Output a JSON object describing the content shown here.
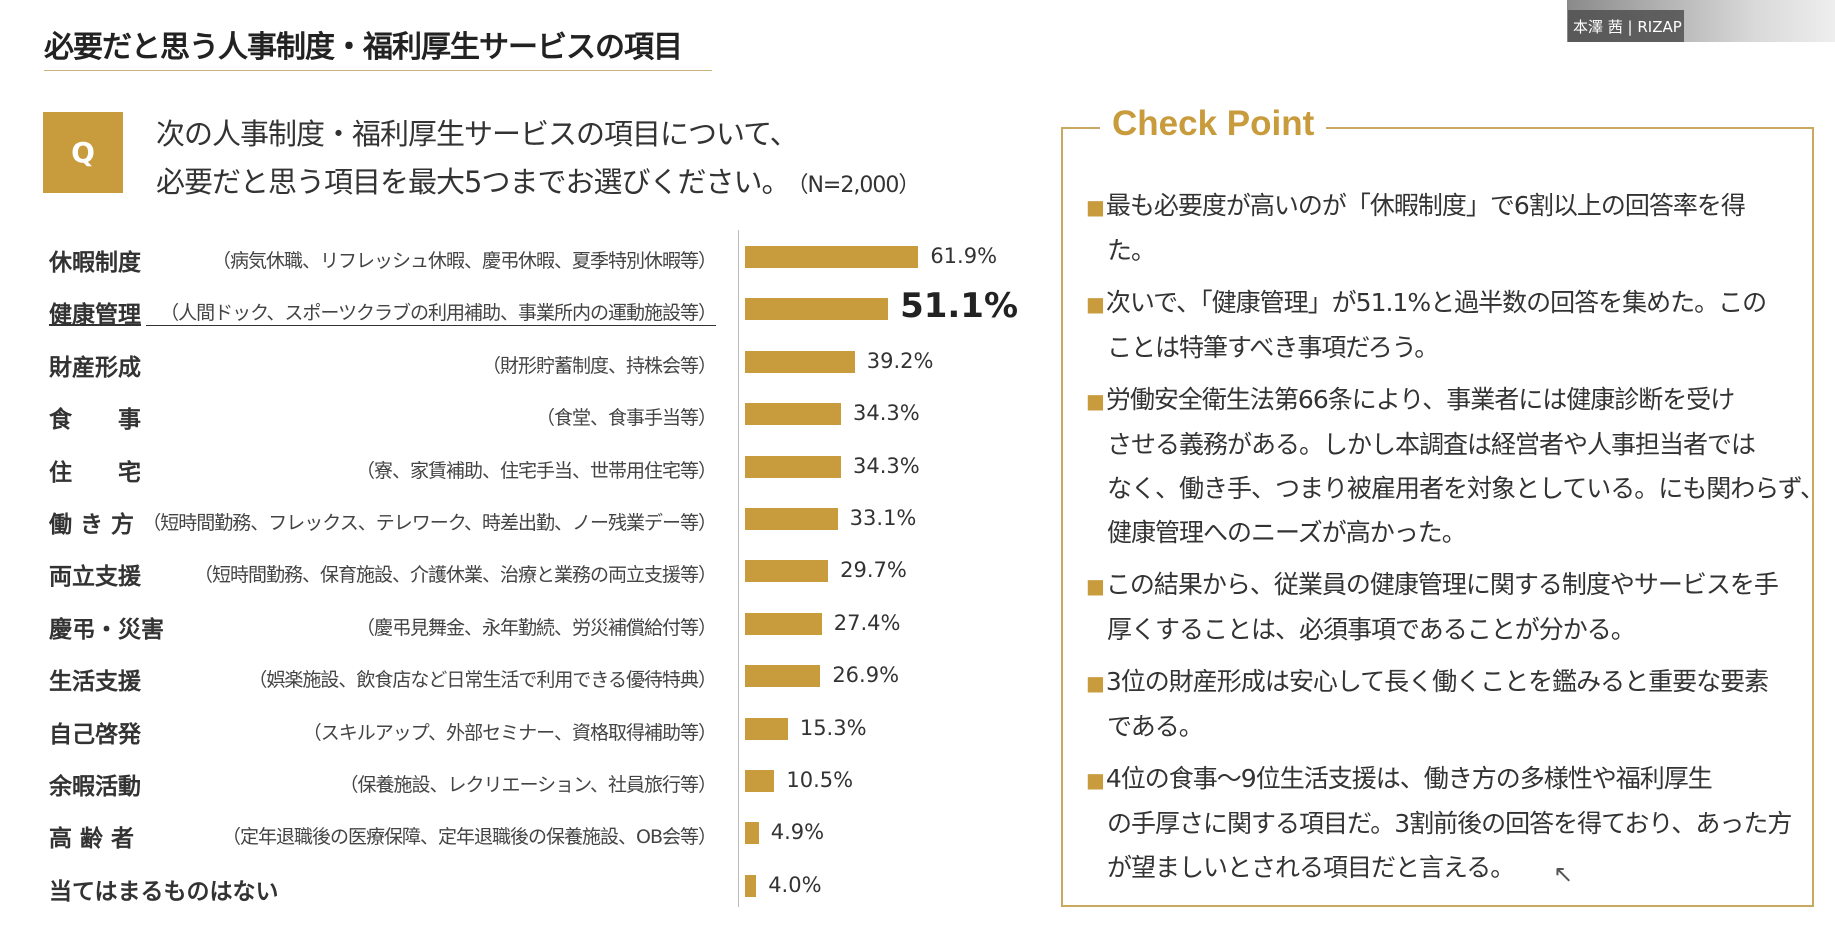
{
  "header": {
    "title": "必要だと思う人事制度・福利厚生サービスの項目"
  },
  "question": {
    "badge": "Q",
    "line1": "次の人事制度・福利厚生サービスの項目について、",
    "line2": "必要だと思う項目を最大5つまでお選びください。",
    "sample": "（N=2,000）"
  },
  "video": {
    "name_tag": "本澤 茜 | RIZAP"
  },
  "chart_data": {
    "type": "bar",
    "orientation": "horizontal",
    "highlight_index": 1,
    "categories": [
      "休暇制度",
      "健康管理",
      "財産形成",
      "食　　事",
      "住　　宅",
      "働 き 方",
      "両立支援",
      "慶弔・災害",
      "生活支援",
      "自己啓発",
      "余暇活動",
      "高 齢 者",
      "当てはまるものはない"
    ],
    "subcategories": [
      "（病気休職、リフレッシュ休暇、慶弔休暇、夏季特別休暇等）",
      "（人間ドック、スポーツクラブの利用補助、事業所内の運動施設等）",
      "（財形貯蓄制度、持株会等）",
      "（食堂、食事手当等）",
      "（寮、家賃補助、住宅手当、世帯用住宅等）",
      "（短時間勤務、フレックス、テレワーク、時差出勤、ノー残業デー等）",
      "（短時間勤務、保育施設、介護休業、治療と業務の両立支援等）",
      "（慶弔見舞金、永年勤続、労災補償給付等）",
      "（娯楽施設、飲食店など日常生活で利用できる優待特典）",
      "（スキルアップ、外部セミナー、資格取得補助等）",
      "（保養施設、レクリエーション、社員旅行等）",
      "（定年退職後の医療保障、定年退職後の保養施設、OB会等）",
      ""
    ],
    "values": [
      61.9,
      51.1,
      39.2,
      34.3,
      34.3,
      33.1,
      29.7,
      27.4,
      26.9,
      15.3,
      10.5,
      4.9,
      4.0
    ],
    "labels": [
      "61.9%",
      "51.1%",
      "39.2%",
      "34.3%",
      "34.3%",
      "33.1%",
      "29.7%",
      "27.4%",
      "26.9%",
      "15.3%",
      "10.5%",
      "4.9%",
      "4.0%"
    ],
    "unit": "%",
    "xlim": [
      0,
      100
    ],
    "color": "#c89b3c"
  },
  "checkpoint": {
    "title": "Check Point",
    "paragraphs": [
      [
        "最も必要度が高いのが「休暇制度」で6割以上の回答率を得",
        "た。"
      ],
      [
        "次いで、「健康管理」が51.1%と過半数の回答を集めた。この",
        "ことは特筆すべき事項だろう。"
      ],
      [
        "労働安全衛生法第66条により、事業者には健康診断を受け",
        "させる義務がある。しかし本調査は経営者や人事担当者では",
        "なく、働き手、つまり被雇用者を対象としている。にも関わらず、",
        "健康管理へのニーズが高かった。"
      ],
      [
        "この結果から、従業員の健康管理に関する制度やサービスを手",
        "厚くすることは、必須事項であることが分かる。"
      ],
      [
        "3位の財産形成は安心して長く働くことを鑑みると重要な要素",
        "である。"
      ],
      [
        "4位の食事～9位生活支援は、働き方の多様性や福利厚生",
        "の手厚さに関する項目だ。3割前後の回答を得ており、あった方",
        "が望ましいとされる項目だと言える。"
      ]
    ],
    "bullet": "■"
  }
}
